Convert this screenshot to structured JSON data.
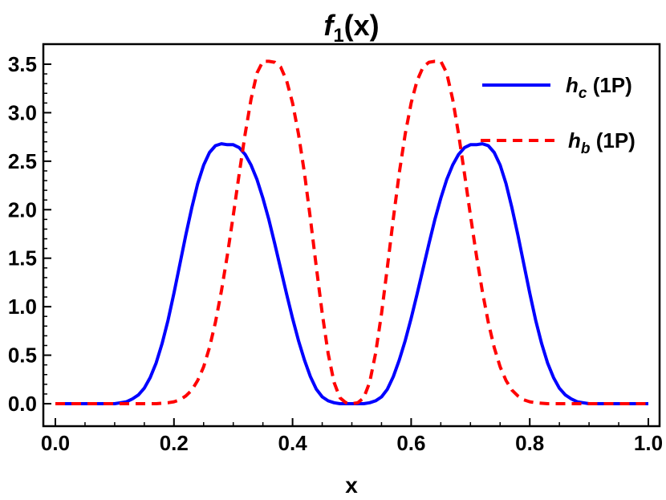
{
  "chart_data": {
    "type": "line",
    "title": "f",
    "title_sub": "1",
    "title_suffix": "(x)",
    "xlabel": "x",
    "ylabel": "",
    "xlim": [
      0.0,
      1.0
    ],
    "ylim": [
      -0.2,
      3.7
    ],
    "xticks": [
      "0.0",
      "0.2",
      "0.4",
      "0.6",
      "0.8",
      "1.0"
    ],
    "yticks": [
      "0.0",
      "0.5",
      "1.0",
      "1.5",
      "2.0",
      "2.5",
      "3.0",
      "3.5"
    ],
    "grid": false,
    "legend_position": "top-right",
    "series": [
      {
        "name": "h",
        "name_sub": "c",
        "name_suffix": "(1P)",
        "color": "#0000ff",
        "style": "solid",
        "x": [
          0.0,
          0.02,
          0.04,
          0.06,
          0.08,
          0.1,
          0.11,
          0.12,
          0.13,
          0.14,
          0.15,
          0.16,
          0.17,
          0.18,
          0.19,
          0.2,
          0.21,
          0.22,
          0.23,
          0.24,
          0.25,
          0.26,
          0.27,
          0.28,
          0.29,
          0.3,
          0.31,
          0.32,
          0.33,
          0.34,
          0.35,
          0.36,
          0.37,
          0.38,
          0.39,
          0.4,
          0.41,
          0.42,
          0.43,
          0.44,
          0.45,
          0.46,
          0.47,
          0.48,
          0.49,
          0.5,
          0.51,
          0.52,
          0.53,
          0.54,
          0.55,
          0.56,
          0.57,
          0.58,
          0.59,
          0.6,
          0.61,
          0.62,
          0.63,
          0.64,
          0.65,
          0.66,
          0.67,
          0.68,
          0.69,
          0.7,
          0.71,
          0.72,
          0.73,
          0.74,
          0.75,
          0.76,
          0.77,
          0.78,
          0.79,
          0.8,
          0.81,
          0.82,
          0.83,
          0.84,
          0.85,
          0.86,
          0.87,
          0.88,
          0.89,
          0.9,
          0.92,
          0.94,
          0.96,
          0.98,
          1.0
        ],
        "y": [
          0.0,
          0.0,
          0.0,
          0.0,
          0.0,
          0.0,
          0.01,
          0.02,
          0.05,
          0.09,
          0.16,
          0.27,
          0.42,
          0.62,
          0.86,
          1.14,
          1.44,
          1.74,
          2.02,
          2.27,
          2.46,
          2.59,
          2.66,
          2.68,
          2.67,
          2.67,
          2.64,
          2.57,
          2.46,
          2.31,
          2.12,
          1.9,
          1.65,
          1.39,
          1.13,
          0.88,
          0.65,
          0.45,
          0.28,
          0.15,
          0.07,
          0.03,
          0.01,
          0.0,
          0.0,
          0.0,
          0.0,
          0.0,
          0.01,
          0.03,
          0.07,
          0.15,
          0.28,
          0.45,
          0.65,
          0.88,
          1.13,
          1.39,
          1.65,
          1.9,
          2.12,
          2.31,
          2.46,
          2.57,
          2.64,
          2.67,
          2.67,
          2.68,
          2.66,
          2.59,
          2.46,
          2.27,
          2.02,
          1.74,
          1.44,
          1.14,
          0.86,
          0.62,
          0.42,
          0.27,
          0.16,
          0.09,
          0.05,
          0.02,
          0.01,
          0.0,
          0.0,
          0.0,
          0.0,
          0.0,
          0.0
        ]
      },
      {
        "name": "h",
        "name_sub": "b",
        "name_suffix": "(1P)",
        "color": "#ff0000",
        "style": "dashed",
        "x": [
          0.0,
          0.05,
          0.1,
          0.15,
          0.17,
          0.19,
          0.2,
          0.21,
          0.22,
          0.23,
          0.24,
          0.25,
          0.26,
          0.27,
          0.28,
          0.29,
          0.3,
          0.31,
          0.32,
          0.33,
          0.34,
          0.35,
          0.36,
          0.37,
          0.38,
          0.39,
          0.4,
          0.41,
          0.42,
          0.43,
          0.44,
          0.45,
          0.46,
          0.47,
          0.48,
          0.49,
          0.5,
          0.51,
          0.52,
          0.53,
          0.54,
          0.55,
          0.56,
          0.57,
          0.58,
          0.59,
          0.6,
          0.61,
          0.62,
          0.63,
          0.64,
          0.65,
          0.66,
          0.67,
          0.68,
          0.69,
          0.7,
          0.71,
          0.72,
          0.73,
          0.74,
          0.75,
          0.76,
          0.77,
          0.78,
          0.79,
          0.8,
          0.81,
          0.83,
          0.85,
          0.9,
          0.95,
          1.0
        ],
        "y": [
          0.0,
          0.0,
          0.0,
          0.0,
          0.0,
          0.01,
          0.02,
          0.04,
          0.08,
          0.14,
          0.24,
          0.38,
          0.58,
          0.84,
          1.16,
          1.53,
          1.94,
          2.37,
          2.78,
          3.14,
          3.41,
          3.53,
          3.53,
          3.52,
          3.47,
          3.33,
          3.1,
          2.78,
          2.38,
          1.91,
          1.41,
          0.93,
          0.52,
          0.22,
          0.06,
          0.01,
          0.0,
          0.01,
          0.06,
          0.22,
          0.52,
          0.93,
          1.41,
          1.91,
          2.38,
          2.78,
          3.1,
          3.33,
          3.47,
          3.52,
          3.53,
          3.53,
          3.41,
          3.14,
          2.78,
          2.37,
          1.94,
          1.53,
          1.16,
          0.84,
          0.58,
          0.38,
          0.24,
          0.14,
          0.08,
          0.04,
          0.02,
          0.01,
          0.0,
          0.0,
          0.0,
          0.0,
          0.0
        ]
      }
    ]
  }
}
